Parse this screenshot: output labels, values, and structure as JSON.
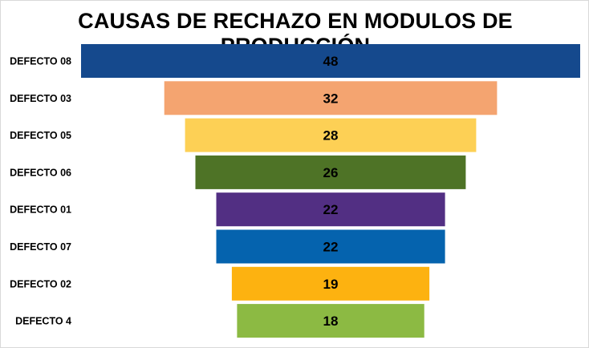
{
  "chart_data": {
    "type": "bar",
    "subtype": "funnel",
    "title": "CAUSAS DE RECHAZO EN MODULOS DE PRODUCCIÓN",
    "xlabel": "",
    "ylabel": "",
    "grid": false,
    "legend": "none",
    "categories": [
      "DEFECTO 08",
      "DEFECTO 03",
      "DEFECTO 05",
      "DEFECTO 06",
      "DEFECTO 01",
      "DEFECTO 07",
      "DEFECTO 02",
      "DEFECTO 4"
    ],
    "values": [
      48,
      32,
      28,
      26,
      22,
      22,
      19,
      18
    ],
    "colors": [
      "#15498d",
      "#f4a470",
      "#fdd055",
      "#4e7326",
      "#522f83",
      "#0563ae",
      "#fdb210",
      "#8cba43"
    ]
  }
}
